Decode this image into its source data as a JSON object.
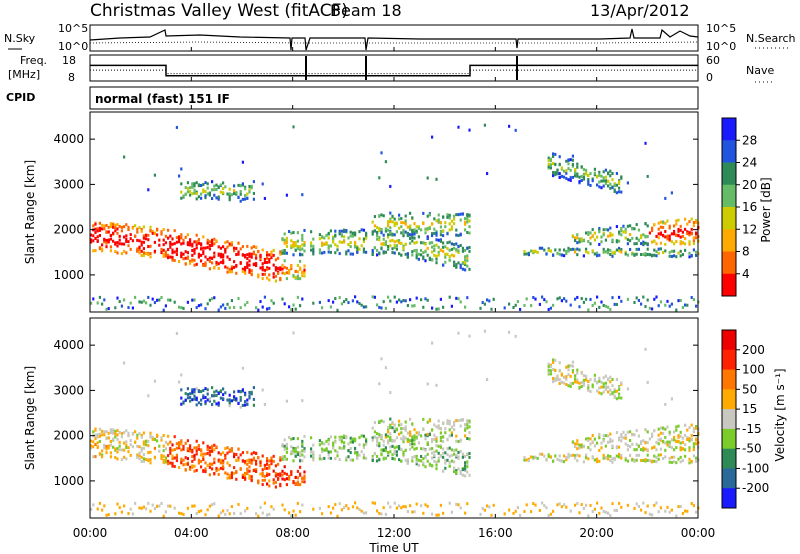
{
  "header": {
    "station": "Christmas Valley West (fitACF)",
    "beam": "Beam 18",
    "date": "13/Apr/2012"
  },
  "noise_panel": {
    "left_label": "N.Sky",
    "left_ticks": [
      "10^5",
      "10^0"
    ],
    "right_label": "N.Search",
    "right_ticks": [
      "10^5",
      "10^0"
    ]
  },
  "freq_panel": {
    "left_label_1": "Freq.",
    "left_label_2": "[MHz]",
    "left_ticks": [
      "18",
      "8"
    ],
    "right_label": "Nave",
    "right_ticks": [
      "60",
      "0"
    ]
  },
  "cpid": {
    "label": "CPID",
    "mode": "normal (fast) 151 IF"
  },
  "power_panel": {
    "ylabel": "Slant Range [km]",
    "yticks": [
      "4000",
      "3000",
      "2000",
      "1000"
    ],
    "colorbar_label": "Power [dB]",
    "colorbar_ticks": [
      "28",
      "24",
      "20",
      "16",
      "12",
      "8",
      "4"
    ]
  },
  "velocity_panel": {
    "ylabel": "Slant Range [km]",
    "yticks": [
      "4000",
      "3000",
      "2000",
      "1000"
    ],
    "colorbar_label": "Velocity [m s⁻¹]",
    "colorbar_ticks": [
      "200",
      "100",
      "50",
      "15",
      "-15",
      "-50",
      "-100",
      "-200"
    ]
  },
  "xaxis": {
    "label": "Time UT",
    "ticks": [
      "00:00",
      "04:00",
      "08:00",
      "12:00",
      "16:00",
      "20:00",
      "00:00"
    ]
  },
  "colors": {
    "power_scale": [
      "#1a1aff",
      "#2255dd",
      "#2e8b57",
      "#66bb66",
      "#cccc00",
      "#ffaa00",
      "#ff6600",
      "#ff0000"
    ],
    "velocity_scale": [
      "#1a1aff",
      "#2a6a9a",
      "#2e8b57",
      "#7acc2a",
      "#c8c8c0",
      "#ffaa00",
      "#ff7700",
      "#ff2200",
      "#ee0000"
    ]
  },
  "chart_data": {
    "type": "heatmap",
    "x_range_hours": [
      0,
      24
    ],
    "y_range_km": [
      180,
      4600
    ],
    "x": [
      "00:00",
      "04:00",
      "08:00",
      "12:00",
      "16:00",
      "20:00",
      "00:00"
    ],
    "y": [
      1000,
      2000,
      3000,
      4000
    ],
    "series": [
      {
        "name": "Power [dB]",
        "range": [
          0,
          30
        ]
      },
      {
        "name": "Velocity [m s⁻¹]",
        "range": [
          -200,
          200
        ]
      }
    ],
    "frequency_mhz": {
      "x_hours": [
        0,
        3,
        15,
        24
      ],
      "values": [
        14,
        10,
        14,
        14
      ]
    },
    "nave": {
      "x_hours": [
        0,
        3,
        15,
        24
      ],
      "values": [
        25,
        17,
        25,
        25
      ]
    }
  }
}
